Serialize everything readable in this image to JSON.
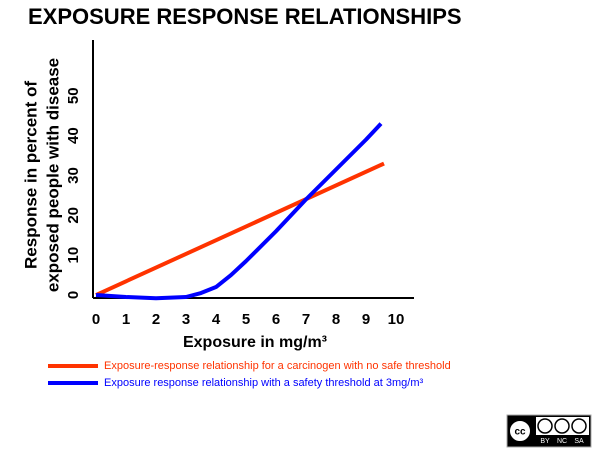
{
  "chart_data": {
    "type": "line",
    "title": "EXPOSURE RESPONSE RELATIONSHIPS",
    "x_label": "Exposure in  mg/m³",
    "y_label": [
      "Response in percent of",
      "exposed people with disease"
    ],
    "xlim": [
      -0.1,
      10.6
    ],
    "xticks": [
      0,
      1,
      2,
      3,
      4,
      5,
      6,
      7,
      8,
      9,
      10
    ],
    "ylim": [
      -0.75,
      64
    ],
    "yticks": [
      0,
      10,
      20,
      30,
      40,
      50
    ],
    "series": [
      {
        "name": "Exposure-response relationship for a carcinogen with no safe threshold",
        "color": "#ff3300",
        "x": [
          0,
          9.6
        ],
        "values": [
          0,
          33
        ]
      },
      {
        "name": "Exposure response relationship with a safety threshold at 3mg/m³",
        "color": "#0000ff",
        "x": [
          0,
          1,
          2,
          3,
          3.5,
          4,
          4.5,
          5,
          6,
          7,
          8,
          9,
          9.5
        ],
        "values": [
          0,
          -0.5,
          -0.8,
          -0.5,
          0.5,
          2,
          5,
          8.5,
          16,
          24,
          31.5,
          39,
          43
        ]
      }
    ]
  },
  "license_badge": [
    "BY",
    "NC",
    "SA"
  ]
}
